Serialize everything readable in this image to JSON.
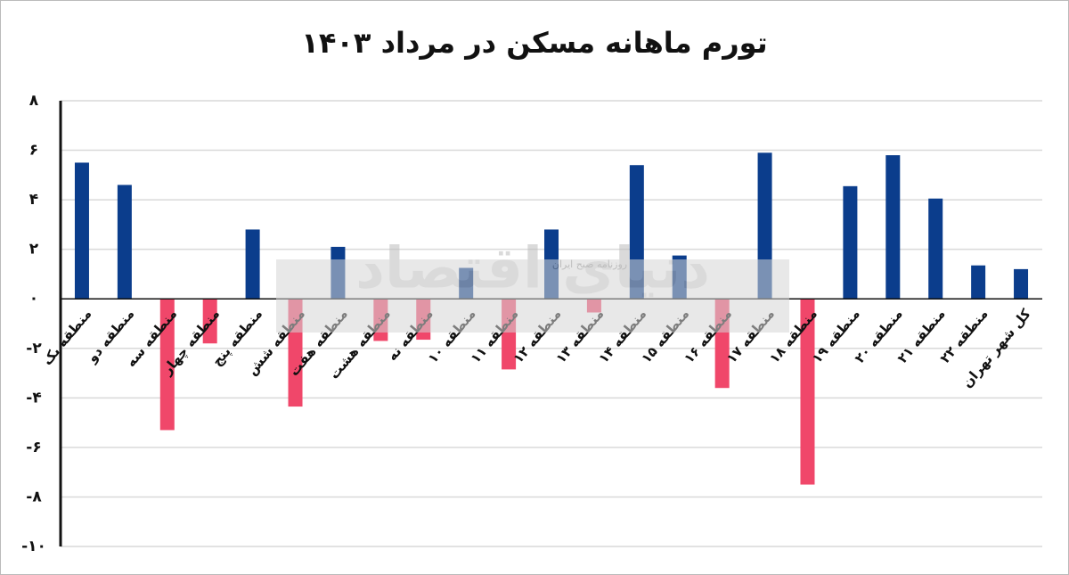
{
  "chart_data": {
    "type": "bar",
    "title": "تورم ماهانه مسکن در مرداد ۱۴۰۳",
    "categories": [
      "منطقه یک",
      "منطقه دو",
      "منطقه سه",
      "منطقه چهار",
      "منطقه پنج",
      "منطقه شش",
      "منطقه هفت",
      "منطقه هشت",
      "منطقه نه",
      "منطقه ۱۰",
      "منطقه ۱۱",
      "منطقه ۱۲",
      "منطقه ۱۳",
      "منطقه ۱۴",
      "منطقه ۱۵",
      "منطقه ۱۶",
      "منطقه ۱۷",
      "منطقه ۱۸",
      "منطقه ۱۹",
      "منطقه ۲۰",
      "منطقه ۲۱",
      "منطقه ۲۲",
      "کل شهر تهران"
    ],
    "values": [
      5.5,
      4.6,
      -5.3,
      -1.8,
      2.8,
      -4.35,
      2.1,
      -1.7,
      -1.65,
      1.25,
      -2.85,
      2.8,
      -0.55,
      5.4,
      1.75,
      -3.6,
      5.9,
      -7.5,
      4.55,
      5.8,
      4.05,
      1.35,
      1.2
    ],
    "positive_color": "#0b3d8c",
    "negative_color": "#f0476a",
    "ylim": [
      -10,
      8
    ],
    "yticks": [
      {
        "value": -10,
        "label": "-۱۰"
      },
      {
        "value": -8,
        "label": "-۸"
      },
      {
        "value": -6,
        "label": "-۶"
      },
      {
        "value": -4,
        "label": "-۴"
      },
      {
        "value": -2,
        "label": "-۲"
      },
      {
        "value": 0,
        "label": "۰"
      },
      {
        "value": 2,
        "label": "۲"
      },
      {
        "value": 4,
        "label": "۴"
      },
      {
        "value": 6,
        "label": "۶"
      },
      {
        "value": 8,
        "label": "۸"
      }
    ],
    "grid": true,
    "watermark": {
      "main": "دنیای اقتصاد",
      "sub": "روزنامه صبح ایران"
    }
  }
}
